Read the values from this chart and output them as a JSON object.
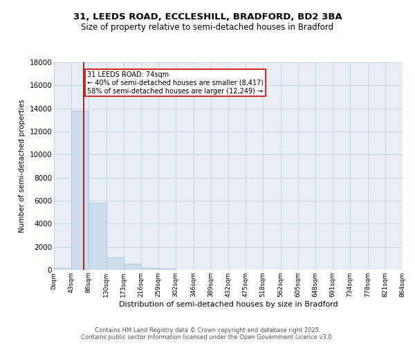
{
  "title_line1": "31, LEEDS ROAD, ECCLESHILL, BRADFORD, BD2 3BA",
  "title_line2": "Size of property relative to semi-detached houses in Bradford",
  "xlabel": "Distribution of semi-detached houses by size in Bradford",
  "ylabel": "Number of semi-detached properties",
  "annotation_title": "31 LEEDS ROAD: 74sqm",
  "annotation_line2": "← 40% of semi-detached houses are smaller (8,417)",
  "annotation_line3": "58% of semi-detached houses are larger (12,249) →",
  "property_size": 74,
  "bar_edges": [
    0,
    43,
    86,
    130,
    173,
    216,
    259,
    302,
    346,
    389,
    432,
    475,
    518,
    562,
    605,
    648,
    691,
    734,
    778,
    821,
    864
  ],
  "bar_labels": [
    "0sqm",
    "43sqm",
    "86sqm",
    "130sqm",
    "173sqm",
    "216sqm",
    "259sqm",
    "302sqm",
    "346sqm",
    "389sqm",
    "432sqm",
    "475sqm",
    "518sqm",
    "562sqm",
    "605sqm",
    "648sqm",
    "691sqm",
    "734sqm",
    "778sqm",
    "821sqm",
    "864sqm"
  ],
  "bar_heights": [
    200,
    13800,
    5800,
    1100,
    550,
    200,
    100,
    20,
    5,
    3,
    2,
    1,
    1,
    0,
    0,
    0,
    0,
    0,
    0,
    0
  ],
  "bar_color": "#cddceb",
  "bar_edge_color": "#aec5d8",
  "grid_color": "#c8d4de",
  "background_color": "#e8eef4",
  "red_line_color": "#990000",
  "annotation_box_edge_color": "#cc0000",
  "ylim": [
    0,
    18000
  ],
  "yticks": [
    0,
    2000,
    4000,
    6000,
    8000,
    10000,
    12000,
    14000,
    16000,
    18000
  ],
  "footer_line1": "Contains HM Land Registry data © Crown copyright and database right 2025.",
  "footer_line2": "Contains public sector information licensed under the Open Government Licence v3.0."
}
